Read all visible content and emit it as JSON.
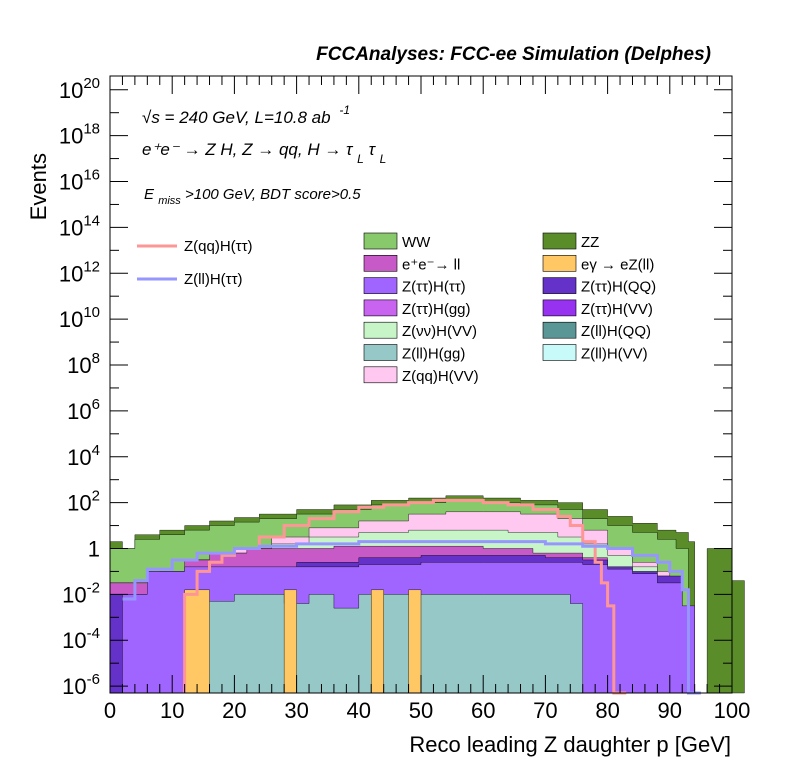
{
  "header": "FCCAnalyses: FCC-ee Simulation (Delphes)",
  "annotations": {
    "sqrt_s": "√s = 240 GeV, L=10.8 ab",
    "lumi_exp": "-1",
    "process_main": "e⁺e⁻ → Z H, Z → qq, H → τ",
    "process_tau_sub": "L",
    "process_tau2": "τ",
    "process_tau2_sub": "L",
    "selection_E": "E",
    "selection_sub": "miss",
    "selection_rest": ">100 GeV, BDT score>0.5"
  },
  "chart_data": {
    "type": "area",
    "title": "FCCAnalyses: FCC-ee Simulation (Delphes)",
    "xlabel": "Reco leading Z daughter p [GeV]",
    "ylabel": "Events",
    "xlim": [
      0,
      100
    ],
    "ylim_log10": [
      -6.3,
      20.6
    ],
    "log_y": true,
    "x_ticks": [
      "0",
      "10",
      "20",
      "30",
      "40",
      "50",
      "60",
      "70",
      "80",
      "90",
      "100"
    ],
    "y_ticks": [
      {
        "base": "10",
        "exp": "-6",
        "value": -6
      },
      {
        "base": "10",
        "exp": "-4",
        "value": -4
      },
      {
        "base": "10",
        "exp": "-2",
        "value": -2
      },
      {
        "base": "1",
        "exp": "",
        "value": 0
      },
      {
        "base": "10",
        "exp": "2",
        "value": 2
      },
      {
        "base": "10",
        "exp": "4",
        "value": 4
      },
      {
        "base": "10",
        "exp": "6",
        "value": 6
      },
      {
        "base": "10",
        "exp": "8",
        "value": 8
      },
      {
        "base": "10",
        "exp": "10",
        "value": 10
      },
      {
        "base": "10",
        "exp": "12",
        "value": 12
      },
      {
        "base": "10",
        "exp": "14",
        "value": 14
      },
      {
        "base": "10",
        "exp": "16",
        "value": 16
      },
      {
        "base": "10",
        "exp": "18",
        "value": 18
      },
      {
        "base": "10",
        "exp": "20",
        "value": 20
      }
    ],
    "stack_layers": [
      {
        "name": "ZZ",
        "color": "#5a8c2a",
        "points": [
          [
            0,
            0.3
          ],
          [
            2,
            0.0
          ],
          [
            4,
            0.6
          ],
          [
            8,
            0.8
          ],
          [
            12,
            1.0
          ],
          [
            16,
            1.2
          ],
          [
            20,
            1.35
          ],
          [
            24,
            1.5
          ],
          [
            30,
            1.7
          ],
          [
            36,
            1.9
          ],
          [
            42,
            2.1
          ],
          [
            48,
            2.2
          ],
          [
            54,
            2.3
          ],
          [
            60,
            2.2
          ],
          [
            66,
            2.1
          ],
          [
            72,
            2.0
          ],
          [
            76,
            1.7
          ],
          [
            80,
            1.4
          ],
          [
            84,
            1.1
          ],
          [
            88,
            0.8
          ],
          [
            91,
            0.7
          ],
          [
            93,
            0.3
          ],
          [
            94,
            -6.3
          ],
          [
            96,
            0.0
          ],
          [
            98,
            0.0
          ],
          [
            100,
            -1.4
          ]
        ]
      },
      {
        "name": "WW",
        "color": "#88c96b",
        "points": [
          [
            0,
            0.0
          ],
          [
            4,
            0.4
          ],
          [
            8,
            0.6
          ],
          [
            12,
            0.8
          ],
          [
            16,
            1.0
          ],
          [
            20,
            1.15
          ],
          [
            24,
            1.3
          ],
          [
            30,
            1.5
          ],
          [
            36,
            1.7
          ],
          [
            42,
            1.9
          ],
          [
            48,
            2.0
          ],
          [
            54,
            2.1
          ],
          [
            60,
            2.0
          ],
          [
            66,
            1.9
          ],
          [
            72,
            1.7
          ],
          [
            76,
            1.3
          ],
          [
            80,
            1.0
          ],
          [
            84,
            0.7
          ],
          [
            88,
            0.4
          ],
          [
            91,
            0.0
          ],
          [
            93,
            -6.3
          ]
        ]
      },
      {
        "name": "Z(qq)H(VV)",
        "color": "#ffc8f0",
        "points": [
          [
            0,
            -1.5
          ],
          [
            8,
            -1.0
          ],
          [
            14,
            -0.5
          ],
          [
            20,
            0.0
          ],
          [
            26,
            0.5
          ],
          [
            32,
            0.9
          ],
          [
            40,
            1.2
          ],
          [
            48,
            1.5
          ],
          [
            54,
            1.6
          ],
          [
            60,
            1.6
          ],
          [
            66,
            1.5
          ],
          [
            72,
            1.3
          ],
          [
            76,
            0.8
          ],
          [
            80,
            0.0
          ],
          [
            84,
            -0.6
          ],
          [
            88,
            -1.0
          ],
          [
            90,
            -6.3
          ]
        ]
      },
      {
        "name": "Z(νν)H(VV)",
        "color": "#c8f5c8",
        "points": [
          [
            0,
            -1.5
          ],
          [
            8,
            -1.0
          ],
          [
            14,
            -0.5
          ],
          [
            20,
            -0.2
          ],
          [
            26,
            0.2
          ],
          [
            32,
            0.5
          ],
          [
            40,
            0.7
          ],
          [
            48,
            0.8
          ],
          [
            56,
            0.8
          ],
          [
            64,
            0.7
          ],
          [
            72,
            0.5
          ],
          [
            76,
            0.2
          ],
          [
            80,
            -0.3
          ],
          [
            84,
            -0.8
          ],
          [
            88,
            -1.2
          ],
          [
            90,
            -6.3
          ]
        ]
      },
      {
        "name": "e⁺e⁻→ ll",
        "color": "#c85ac8",
        "points": [
          [
            0,
            -1.5
          ],
          [
            6,
            -1.0
          ],
          [
            12,
            -0.5
          ],
          [
            16,
            -0.2
          ],
          [
            22,
            0.0
          ],
          [
            30,
            0.0
          ],
          [
            36,
            0.1
          ],
          [
            44,
            0.1
          ],
          [
            52,
            0.1
          ],
          [
            60,
            0.0
          ],
          [
            68,
            -0.2
          ],
          [
            76,
            -0.4
          ],
          [
            80,
            -0.8
          ],
          [
            84,
            -1.2
          ],
          [
            88,
            -2.0
          ],
          [
            90,
            -6.3
          ]
        ]
      },
      {
        "name": "Z(ττ)H(QQ)",
        "color": "#6432c8",
        "points": [
          [
            0,
            -2.0
          ],
          [
            10,
            -1.5
          ],
          [
            20,
            -1.0
          ],
          [
            30,
            -0.6
          ],
          [
            40,
            -0.4
          ],
          [
            50,
            -0.3
          ],
          [
            60,
            -0.3
          ],
          [
            70,
            -0.4
          ],
          [
            76,
            -0.5
          ],
          [
            80,
            -0.8
          ],
          [
            84,
            -1.0
          ],
          [
            88,
            -1.2
          ],
          [
            92,
            -3.0
          ],
          [
            94,
            -6.3
          ]
        ]
      },
      {
        "name": "Z(ττ)H(ττ)",
        "color": "#a064ff",
        "points": [
          [
            0,
            -6.3
          ],
          [
            2,
            -2.0
          ],
          [
            6,
            -1.0
          ],
          [
            12,
            -0.8
          ],
          [
            20,
            -0.8
          ],
          [
            30,
            -0.8
          ],
          [
            40,
            -0.7
          ],
          [
            50,
            -0.6
          ],
          [
            60,
            -0.6
          ],
          [
            70,
            -0.6
          ],
          [
            76,
            -0.7
          ],
          [
            80,
            -0.9
          ],
          [
            84,
            -1.1
          ],
          [
            88,
            -1.5
          ],
          [
            92,
            -2.5
          ],
          [
            94,
            -6.3
          ]
        ]
      },
      {
        "name": "Z(ll)H(gg)",
        "color": "#96c8c8",
        "points": [
          [
            0,
            -6.3
          ],
          [
            14,
            -2.3
          ],
          [
            20,
            -2.0
          ],
          [
            24,
            -2.0
          ],
          [
            28,
            -2.4
          ],
          [
            32,
            -2.0
          ],
          [
            36,
            -2.6
          ],
          [
            40,
            -2.0
          ],
          [
            44,
            -2.0
          ],
          [
            48,
            -2.0
          ],
          [
            52,
            -2.0
          ],
          [
            60,
            -2.0
          ],
          [
            66,
            -2.0
          ],
          [
            74,
            -2.4
          ],
          [
            76,
            -6.3
          ]
        ]
      },
      {
        "name": "eγ → eZ(ll)",
        "color": "#ffc864",
        "points": [
          [
            0,
            -6.3
          ],
          [
            12,
            -1.8
          ],
          [
            16,
            -6.3
          ],
          [
            28,
            -1.8
          ],
          [
            30,
            -6.3
          ],
          [
            42,
            -1.8
          ],
          [
            44,
            -6.3
          ],
          [
            48,
            -1.8
          ],
          [
            50,
            -6.3
          ],
          [
            80,
            -6.3
          ]
        ]
      }
    ],
    "legend_items": [
      {
        "name": "WW",
        "color": "#88c96b"
      },
      {
        "name": "ZZ",
        "color": "#5a8c2a"
      },
      {
        "name": "e⁺e⁻→ ll",
        "color": "#c85ac8"
      },
      {
        "name": "eγ → eZ(ll)",
        "color": "#ffc864"
      },
      {
        "name": "Z(ττ)H(ττ)",
        "color": "#a064ff"
      },
      {
        "name": "Z(ττ)H(QQ)",
        "color": "#6432c8"
      },
      {
        "name": "Z(ττ)H(gg)",
        "color": "#c864f0"
      },
      {
        "name": "Z(ττ)H(VV)",
        "color": "#9632f0"
      },
      {
        "name": "Z(νν)H(VV)",
        "color": "#c8f5c8"
      },
      {
        "name": "Z(ll)H(QQ)",
        "color": "#5a9696"
      },
      {
        "name": "Z(ll)H(gg)",
        "color": "#96c8c8"
      },
      {
        "name": "Z(ll)H(VV)",
        "color": "#c8fafa"
      },
      {
        "name": "Z(qq)H(VV)",
        "color": "#ffc8f0"
      }
    ],
    "signals": [
      {
        "name": "Z(qq)H(ττ)",
        "color": "#ff9696",
        "points": [
          [
            12,
            -6.3
          ],
          [
            12,
            -2.0
          ],
          [
            14,
            -1.0
          ],
          [
            16,
            -0.6
          ],
          [
            18,
            -0.3
          ],
          [
            20,
            0.0
          ],
          [
            24,
            0.5
          ],
          [
            28,
            1.0
          ],
          [
            32,
            1.3
          ],
          [
            36,
            1.6
          ],
          [
            40,
            1.8
          ],
          [
            44,
            1.9
          ],
          [
            48,
            2.0
          ],
          [
            52,
            2.1
          ],
          [
            56,
            2.1
          ],
          [
            60,
            2.0
          ],
          [
            64,
            1.9
          ],
          [
            68,
            1.7
          ],
          [
            72,
            1.4
          ],
          [
            74,
            1.0
          ],
          [
            76,
            0.3
          ],
          [
            78,
            -0.6
          ],
          [
            79,
            -1.5
          ],
          [
            80,
            -2.5
          ],
          [
            81,
            -6.3
          ]
        ]
      },
      {
        "name": "Z(ll)H(ττ)",
        "color": "#9696ff",
        "points": [
          [
            2,
            -2.2
          ],
          [
            4,
            -1.4
          ],
          [
            6,
            -0.9
          ],
          [
            10,
            -0.5
          ],
          [
            14,
            -0.2
          ],
          [
            20,
            0.0
          ],
          [
            24,
            0.1
          ],
          [
            30,
            0.2
          ],
          [
            40,
            0.3
          ],
          [
            50,
            0.3
          ],
          [
            60,
            0.3
          ],
          [
            70,
            0.2
          ],
          [
            76,
            0.1
          ],
          [
            80,
            0.0
          ],
          [
            84,
            -0.3
          ],
          [
            88,
            -0.6
          ],
          [
            90,
            -1.0
          ],
          [
            92,
            -1.8
          ],
          [
            93,
            -6.3
          ]
        ]
      }
    ]
  }
}
